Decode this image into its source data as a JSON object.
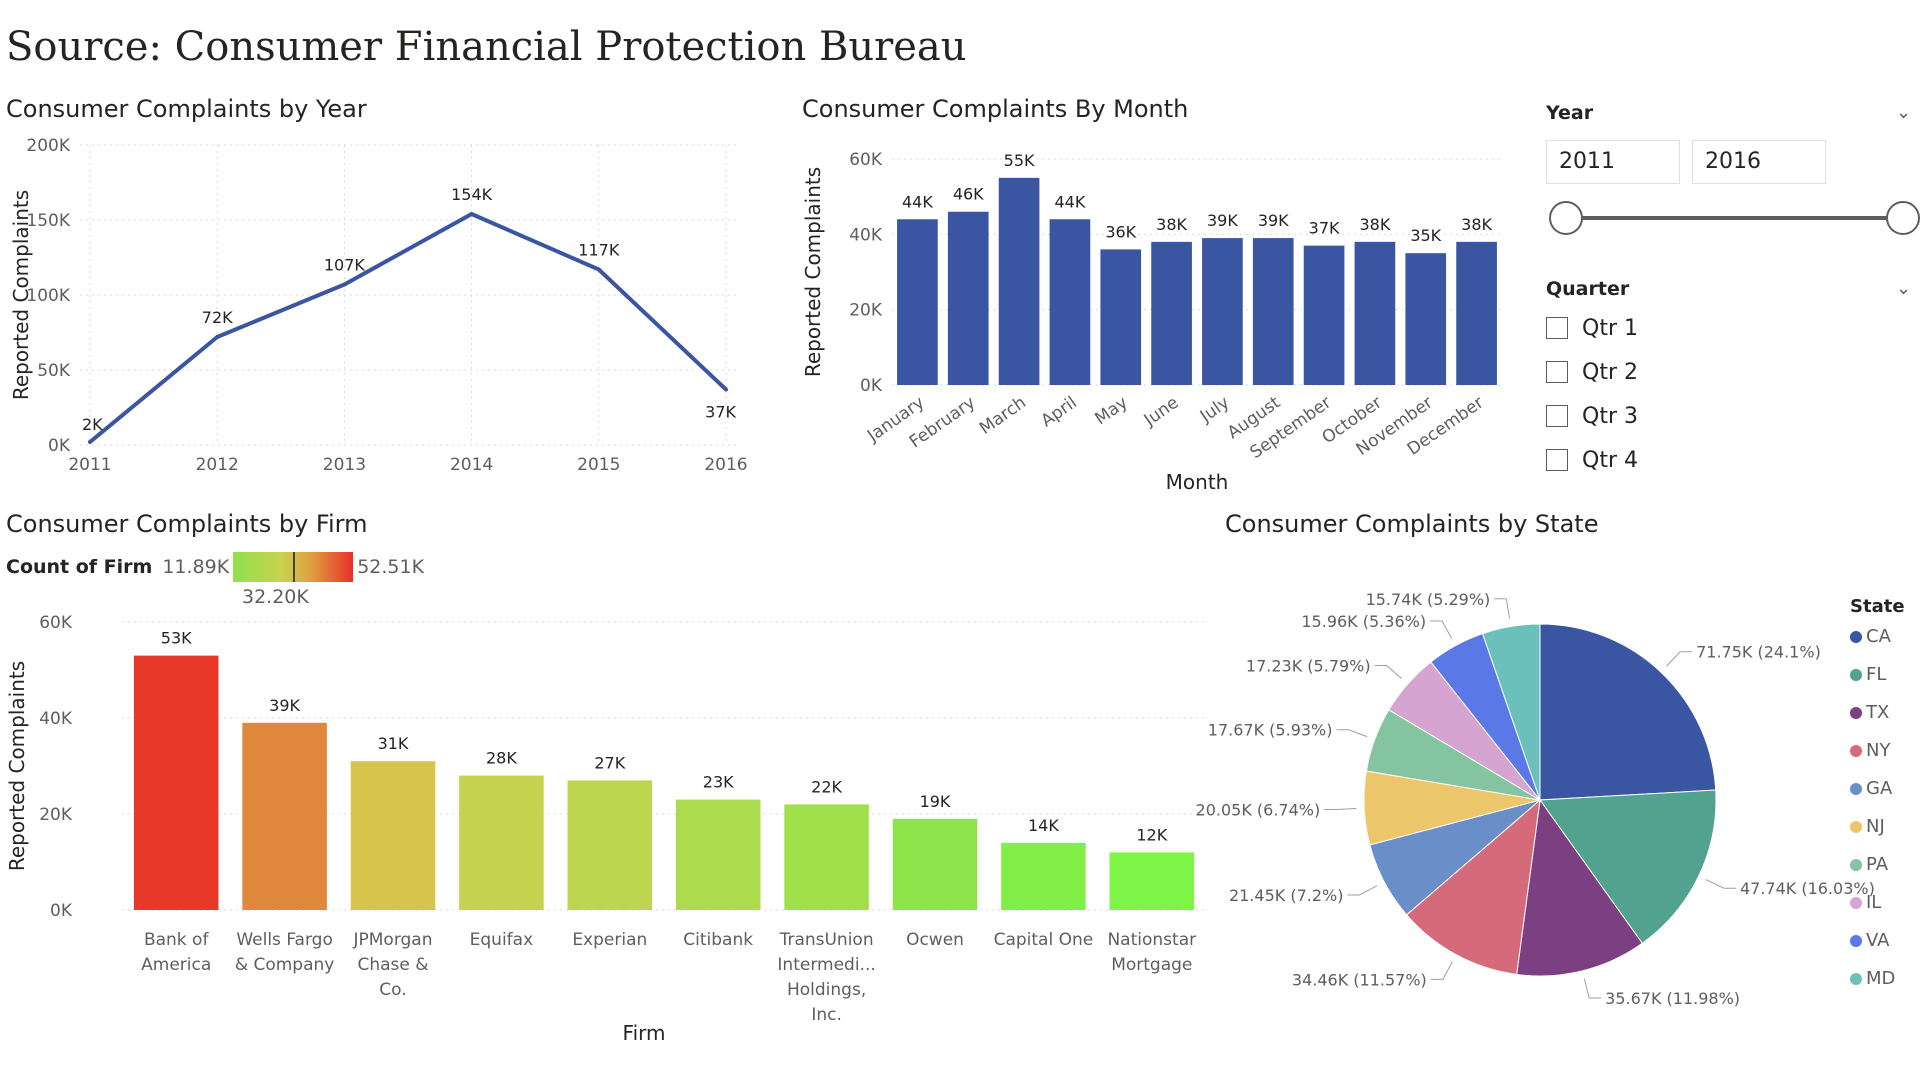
{
  "page": {
    "title": "Source: Consumer Financial Protection Bureau"
  },
  "colors": {
    "primary_bar": "#3a55a1",
    "line": "#3a55a1",
    "axis_text": "#605e5c"
  },
  "chart_data": [
    {
      "id": "by_year",
      "type": "line",
      "title": "Consumer Complaints by Year",
      "xlabel": "",
      "ylabel": "Reported Complaints",
      "categories": [
        "2011",
        "2012",
        "2013",
        "2014",
        "2015",
        "2016"
      ],
      "values": [
        2000,
        72000,
        107000,
        154000,
        117000,
        37000
      ],
      "data_labels": [
        "2K",
        "72K",
        "107K",
        "154K",
        "117K",
        "37K"
      ],
      "ylim": [
        0,
        200000
      ],
      "yticks": [
        "0K",
        "50K",
        "100K",
        "150K",
        "200K"
      ],
      "grid": true
    },
    {
      "id": "by_month",
      "type": "bar",
      "title": "Consumer Complaints By Month",
      "xlabel": "Month",
      "ylabel": "Reported Complaints",
      "categories": [
        "January",
        "February",
        "March",
        "April",
        "May",
        "June",
        "July",
        "August",
        "September",
        "October",
        "November",
        "December"
      ],
      "values": [
        44000,
        46000,
        55000,
        44000,
        36000,
        38000,
        39000,
        39000,
        37000,
        38000,
        35000,
        38000
      ],
      "data_labels": [
        "44K",
        "46K",
        "55K",
        "44K",
        "36K",
        "38K",
        "39K",
        "39K",
        "37K",
        "38K",
        "35K",
        "38K"
      ],
      "ylim": [
        0,
        60000
      ],
      "yticks": [
        "0K",
        "20K",
        "40K",
        "60K"
      ],
      "color": "#3a55a1"
    },
    {
      "id": "by_firm",
      "type": "bar",
      "title": "Consumer Complaints by Firm",
      "xlabel": "Firm",
      "ylabel": "Reported Complaints",
      "categories": [
        [
          "Bank of",
          "America"
        ],
        [
          "Wells Fargo",
          "& Company"
        ],
        [
          "JPMorgan",
          "Chase &",
          "Co."
        ],
        [
          "Equifax"
        ],
        [
          "Experian"
        ],
        [
          "Citibank"
        ],
        [
          "TransUnion",
          "Intermedi...",
          "Holdings,",
          "Inc."
        ],
        [
          "Ocwen"
        ],
        [
          "Capital One"
        ],
        [
          "Nationstar",
          "Mortgage"
        ]
      ],
      "values": [
        53000,
        39000,
        31000,
        28000,
        27000,
        23000,
        22000,
        19000,
        14000,
        12000
      ],
      "data_labels": [
        "53K",
        "39K",
        "31K",
        "28K",
        "27K",
        "23K",
        "22K",
        "19K",
        "14K",
        "12K"
      ],
      "colors": [
        "#e8382a",
        "#e0883c",
        "#d8c44c",
        "#c4d350",
        "#bed54f",
        "#acdb4e",
        "#a0e04b",
        "#8ee44b",
        "#82ee48",
        "#7ef546"
      ],
      "ylim": [
        0,
        60000
      ],
      "yticks": [
        "0K",
        "20K",
        "40K",
        "60K"
      ],
      "legend": {
        "label": "Count of Firm",
        "min": "11.89K",
        "mid": "32.20K",
        "max": "52.51K"
      }
    },
    {
      "id": "by_state",
      "type": "pie",
      "title": "Consumer Complaints by State",
      "legend_title": "State",
      "legend_placement": "right",
      "slices": [
        {
          "label": "CA",
          "value": 71750,
          "text": "71.75K (24.1%)",
          "color": "#3a55a1"
        },
        {
          "label": "FL",
          "value": 47740,
          "text": "47.74K (16.03%)",
          "color": "#51a390"
        },
        {
          "label": "TX",
          "value": 35670,
          "text": "35.67K (11.98%)",
          "color": "#7b3f82"
        },
        {
          "label": "NY",
          "value": 34460,
          "text": "34.46K (11.57%)",
          "color": "#d56b7a"
        },
        {
          "label": "GA",
          "value": 21450,
          "text": "21.45K (7.2%)",
          "color": "#6a8ec8"
        },
        {
          "label": "NJ",
          "value": 20050,
          "text": "20.05K (6.74%)",
          "color": "#ecc66a"
        },
        {
          "label": "PA",
          "value": 17670,
          "text": "17.67K (5.93%)",
          "color": "#85c4a0"
        },
        {
          "label": "IL",
          "value": 17230,
          "text": "17.23K (5.79%)",
          "color": "#d6a4d0"
        },
        {
          "label": "VA",
          "value": 15960,
          "text": "15.96K (5.36%)",
          "color": "#5a78e6"
        },
        {
          "label": "MD",
          "value": 15740,
          "text": "15.74K (5.29%)",
          "color": "#6cc0bc"
        }
      ]
    }
  ],
  "slicers": {
    "year": {
      "header": "Year",
      "start": "2011",
      "end": "2016"
    },
    "quarter": {
      "header": "Quarter",
      "options": [
        "Qtr 1",
        "Qtr 2",
        "Qtr 3",
        "Qtr 4"
      ]
    }
  },
  "icons": {
    "dropdown": "chevron-down-icon"
  }
}
